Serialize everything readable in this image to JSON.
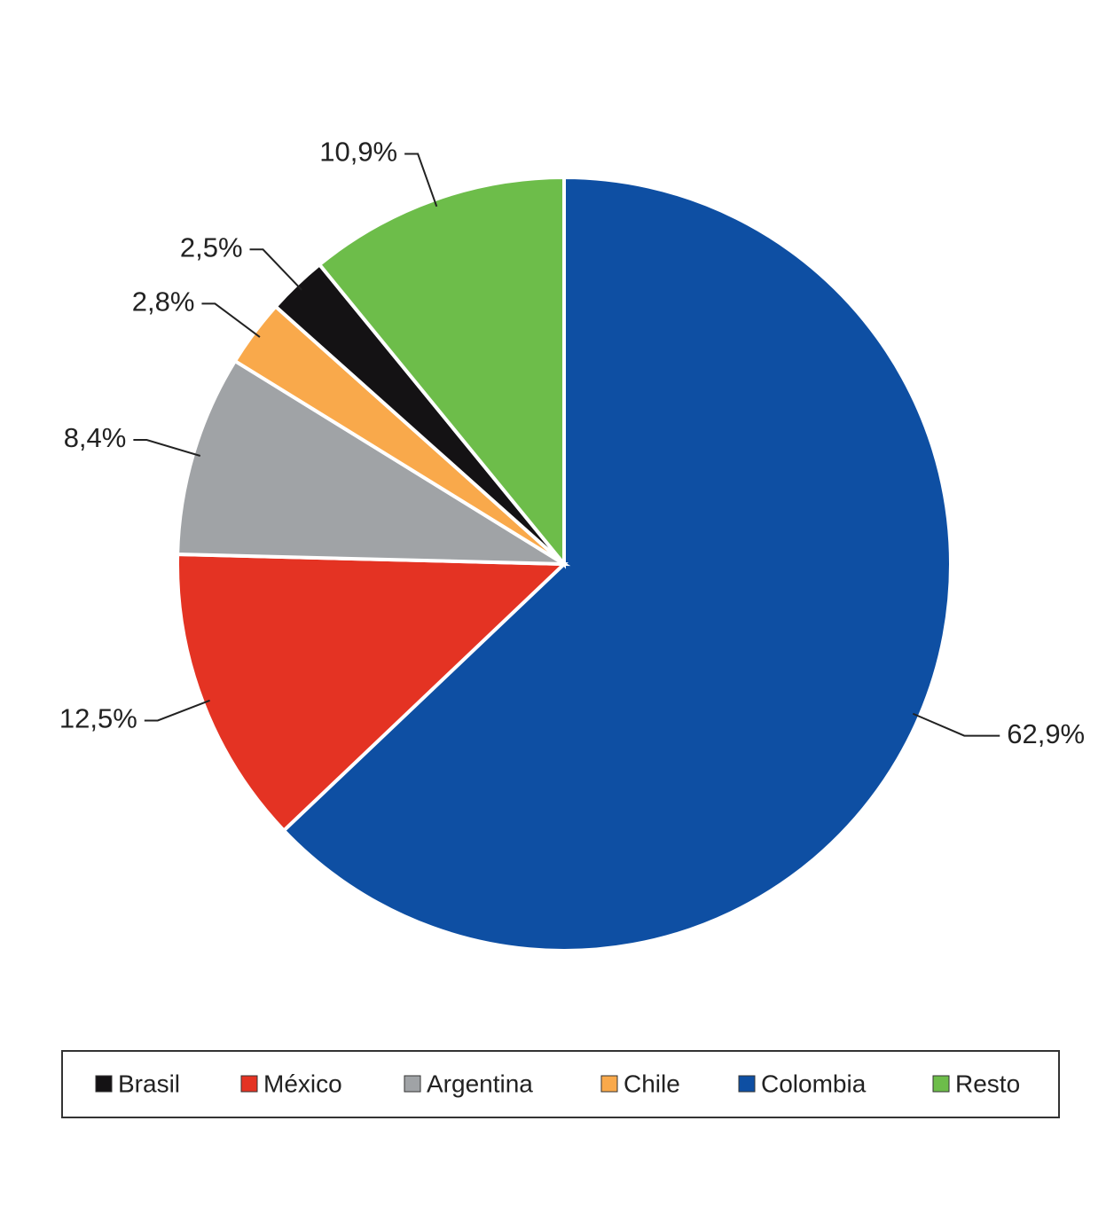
{
  "chart_data": {
    "type": "pie",
    "categories": [
      "Brasil",
      "México",
      "Argentina",
      "Chile",
      "Colombia",
      "Resto"
    ],
    "values": [
      2.5,
      12.5,
      8.4,
      2.8,
      62.9,
      10.9
    ],
    "value_labels": [
      "2,5%",
      "12,5%",
      "8,4%",
      "2,8%",
      "62,9%",
      "10,9%"
    ],
    "colors": [
      "#141214",
      "#e43323",
      "#a0a3a6",
      "#f9a94b",
      "#0e4fa3",
      "#6dbd4a"
    ],
    "legend": "bottom"
  }
}
